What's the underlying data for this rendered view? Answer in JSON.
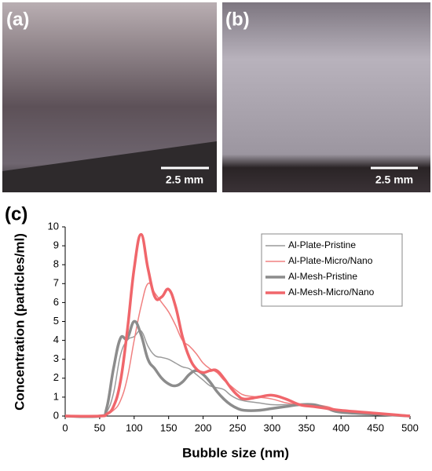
{
  "panels": [
    {
      "label": "(a)",
      "scale_bar": "2.5 mm"
    },
    {
      "label": "(b)",
      "scale_bar": "2.5 mm"
    }
  ],
  "chart_data": {
    "type": "line",
    "panel_label": "(c)",
    "x_label": "Bubble size (nm)",
    "y_label": "Concentration (particles/ml)",
    "x": [
      0,
      50,
      60,
      70,
      80,
      90,
      100,
      110,
      120,
      130,
      140,
      150,
      160,
      170,
      180,
      190,
      200,
      210,
      220,
      230,
      240,
      250,
      260,
      280,
      300,
      320,
      340,
      360,
      380,
      400,
      450,
      500
    ],
    "series": [
      {
        "name": "Al-Plate-Pristine",
        "color": "#9a9a9a",
        "width": 1.5,
        "values": [
          0,
          0,
          0.2,
          1.2,
          3.2,
          4.0,
          4.2,
          4.5,
          3.7,
          3.2,
          3.1,
          3.0,
          2.8,
          2.6,
          2.5,
          2.2,
          1.9,
          1.6,
          1.5,
          1.4,
          1.1,
          0.9,
          0.8,
          0.7,
          0.6,
          0.6,
          0.6,
          0.5,
          0.4,
          0.3,
          0.1,
          0
        ]
      },
      {
        "name": "Al-Plate-Micro/Nano",
        "color": "#f08080",
        "width": 1.5,
        "values": [
          0,
          0,
          0.1,
          0.3,
          0.8,
          2.0,
          4.0,
          5.8,
          7.0,
          6.5,
          6.0,
          5.5,
          4.8,
          4.0,
          3.7,
          3.3,
          2.8,
          2.5,
          2.3,
          1.9,
          1.6,
          1.3,
          1.1,
          1.0,
          0.9,
          0.7,
          0.6,
          0.6,
          0.5,
          0.3,
          0.15,
          0
        ]
      },
      {
        "name": "Al-Mesh-Pristine",
        "color": "#8c8c8c",
        "width": 3.5,
        "values": [
          0,
          0,
          0.4,
          2.5,
          4.1,
          4.1,
          5.0,
          4.3,
          3.0,
          2.5,
          2.0,
          1.7,
          1.6,
          1.8,
          2.2,
          2.4,
          2.2,
          1.8,
          1.3,
          0.9,
          0.6,
          0.4,
          0.3,
          0.3,
          0.4,
          0.5,
          0.6,
          0.6,
          0.4,
          0.2,
          0.1,
          0
        ]
      },
      {
        "name": "Al-Mesh-Micro/Nano",
        "color": "#f0666b",
        "width": 3.5,
        "values": [
          0,
          0,
          0.1,
          0.5,
          1.8,
          4.5,
          7.8,
          9.6,
          7.8,
          6.3,
          6.3,
          6.7,
          5.8,
          4.2,
          3.1,
          2.5,
          2.3,
          2.4,
          2.4,
          2.0,
          1.5,
          1.1,
          0.9,
          1.0,
          1.1,
          0.9,
          0.6,
          0.5,
          0.4,
          0.3,
          0.15,
          0
        ]
      }
    ],
    "xlim": [
      0,
      500
    ],
    "xticks": [
      0,
      50,
      100,
      150,
      200,
      250,
      300,
      350,
      400,
      450,
      500
    ],
    "ylim": [
      0,
      10
    ],
    "yticks": [
      0,
      1,
      2,
      3,
      4,
      5,
      6,
      7,
      8,
      9,
      10
    ],
    "legend": "upper right",
    "grid": false
  }
}
